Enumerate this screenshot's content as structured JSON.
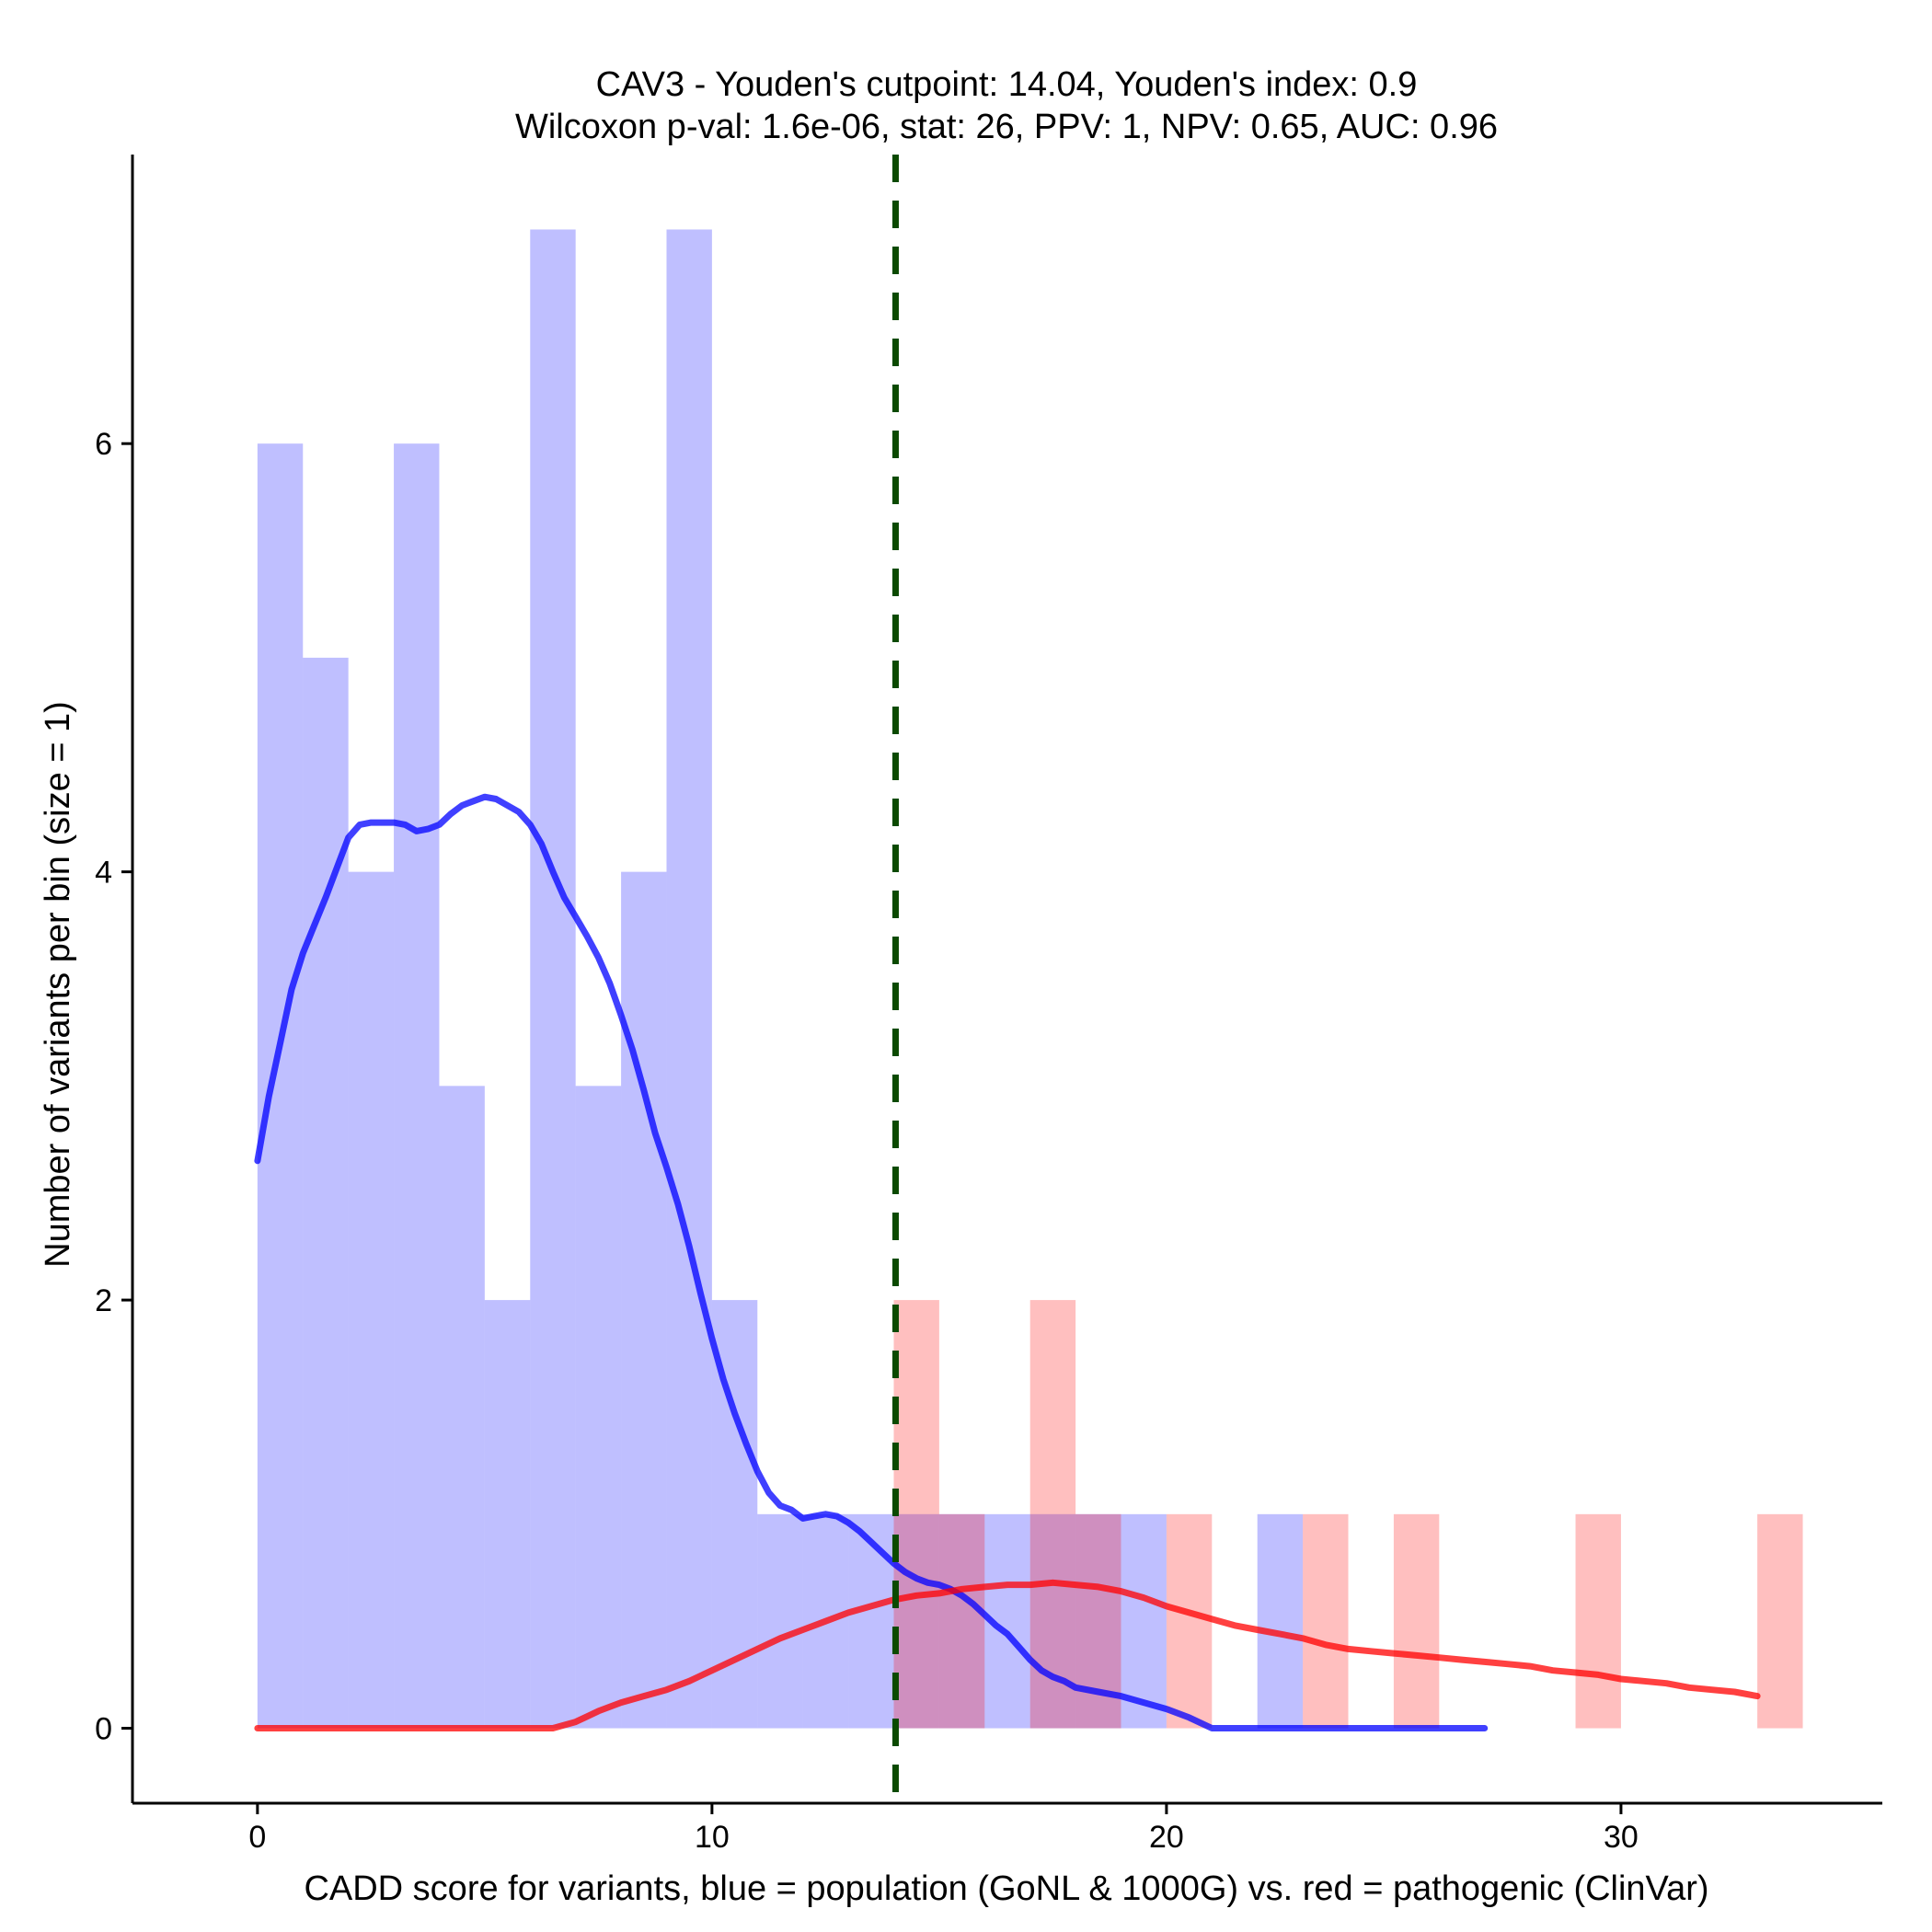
{
  "chart_data": {
    "type": "bar",
    "title_line1": "CAV3 - Youden's cutpoint: 14.04, Youden's index: 0.9",
    "title_line2": "Wilcoxon p-val: 1.6e-06, stat: 26, PPV: 1, NPV: 0.65, AUC: 0.96",
    "xlabel": "CADD score for variants, blue = population (GoNL & 1000G) vs. red = pathogenic (ClinVar)",
    "ylabel": "Number of variants per bin (size = 1)",
    "xlim": [
      -2.75,
      35.75
    ],
    "ylim": [
      -0.35,
      7.35
    ],
    "xticks": [
      0,
      10,
      20,
      30
    ],
    "yticks": [
      0,
      2,
      4,
      6
    ],
    "bin_width": 1,
    "cutpoint": 14.04,
    "series": [
      {
        "name": "population (GoNL & 1000G)",
        "color": "#0000ff",
        "bar_opacity": 0.25,
        "bins": [
          {
            "start": 0,
            "count": 6
          },
          {
            "start": 1,
            "count": 5
          },
          {
            "start": 2,
            "count": 4
          },
          {
            "start": 3,
            "count": 6
          },
          {
            "start": 4,
            "count": 3
          },
          {
            "start": 5,
            "count": 2
          },
          {
            "start": 6,
            "count": 7
          },
          {
            "start": 7,
            "count": 3
          },
          {
            "start": 8,
            "count": 4
          },
          {
            "start": 9,
            "count": 7
          },
          {
            "start": 10,
            "count": 2
          },
          {
            "start": 11,
            "count": 1
          },
          {
            "start": 12,
            "count": 1
          },
          {
            "start": 13,
            "count": 1
          },
          {
            "start": 14,
            "count": 1
          },
          {
            "start": 15,
            "count": 1
          },
          {
            "start": 16,
            "count": 1
          },
          {
            "start": 17,
            "count": 1
          },
          {
            "start": 18,
            "count": 1
          },
          {
            "start": 19,
            "count": 1
          },
          {
            "start": 22,
            "count": 1
          }
        ],
        "density": [
          [
            0,
            2.65
          ],
          [
            0.25,
            2.95
          ],
          [
            0.5,
            3.2
          ],
          [
            0.75,
            3.45
          ],
          [
            1,
            3.62
          ],
          [
            1.25,
            3.75
          ],
          [
            1.5,
            3.88
          ],
          [
            1.75,
            4.02
          ],
          [
            2,
            4.16
          ],
          [
            2.25,
            4.22
          ],
          [
            2.5,
            4.23
          ],
          [
            2.75,
            4.23
          ],
          [
            3,
            4.23
          ],
          [
            3.25,
            4.22
          ],
          [
            3.5,
            4.19
          ],
          [
            3.75,
            4.2
          ],
          [
            4,
            4.22
          ],
          [
            4.25,
            4.27
          ],
          [
            4.5,
            4.31
          ],
          [
            4.75,
            4.33
          ],
          [
            5,
            4.35
          ],
          [
            5.25,
            4.34
          ],
          [
            5.5,
            4.31
          ],
          [
            5.75,
            4.28
          ],
          [
            6,
            4.22
          ],
          [
            6.25,
            4.13
          ],
          [
            6.5,
            4.0
          ],
          [
            6.75,
            3.88
          ],
          [
            7,
            3.79
          ],
          [
            7.25,
            3.7
          ],
          [
            7.5,
            3.6
          ],
          [
            7.75,
            3.48
          ],
          [
            8,
            3.33
          ],
          [
            8.25,
            3.17
          ],
          [
            8.5,
            2.98
          ],
          [
            8.75,
            2.78
          ],
          [
            9,
            2.62
          ],
          [
            9.25,
            2.45
          ],
          [
            9.5,
            2.25
          ],
          [
            9.75,
            2.03
          ],
          [
            10,
            1.82
          ],
          [
            10.25,
            1.63
          ],
          [
            10.5,
            1.47
          ],
          [
            10.75,
            1.33
          ],
          [
            11,
            1.2
          ],
          [
            11.25,
            1.1
          ],
          [
            11.5,
            1.04
          ],
          [
            11.75,
            1.02
          ],
          [
            12,
            0.98
          ],
          [
            12.25,
            0.99
          ],
          [
            12.5,
            1.0
          ],
          [
            12.75,
            0.99
          ],
          [
            13,
            0.96
          ],
          [
            13.25,
            0.92
          ],
          [
            13.5,
            0.87
          ],
          [
            13.75,
            0.82
          ],
          [
            14,
            0.77
          ],
          [
            14.25,
            0.73
          ],
          [
            14.5,
            0.7
          ],
          [
            14.75,
            0.68
          ],
          [
            15,
            0.67
          ],
          [
            15.25,
            0.65
          ],
          [
            15.5,
            0.62
          ],
          [
            15.75,
            0.58
          ],
          [
            16,
            0.53
          ],
          [
            16.25,
            0.48
          ],
          [
            16.5,
            0.44
          ],
          [
            16.75,
            0.38
          ],
          [
            17,
            0.32
          ],
          [
            17.25,
            0.27
          ],
          [
            17.5,
            0.24
          ],
          [
            17.75,
            0.22
          ],
          [
            18,
            0.19
          ],
          [
            18.5,
            0.17
          ],
          [
            19,
            0.15
          ],
          [
            19.5,
            0.12
          ],
          [
            20,
            0.09
          ],
          [
            20.5,
            0.05
          ],
          [
            21,
            0.0
          ],
          [
            27,
            0.0
          ]
        ]
      },
      {
        "name": "pathogenic (ClinVar)",
        "color": "#ff0000",
        "bar_opacity": 0.25,
        "bins": [
          {
            "start": 14,
            "count": 2
          },
          {
            "start": 15,
            "count": 1
          },
          {
            "start": 17,
            "count": 2
          },
          {
            "start": 18,
            "count": 1
          },
          {
            "start": 20,
            "count": 1
          },
          {
            "start": 23,
            "count": 1
          },
          {
            "start": 25,
            "count": 1
          },
          {
            "start": 29,
            "count": 1
          },
          {
            "start": 33,
            "count": 1
          }
        ],
        "density": [
          [
            0,
            0.0
          ],
          [
            1,
            0.0
          ],
          [
            2,
            0.0
          ],
          [
            3,
            0.0
          ],
          [
            4,
            0.0
          ],
          [
            5,
            0.0
          ],
          [
            6,
            0.0
          ],
          [
            6.5,
            0.0
          ],
          [
            7,
            0.03
          ],
          [
            7.5,
            0.08
          ],
          [
            8,
            0.12
          ],
          [
            8.5,
            0.15
          ],
          [
            9,
            0.18
          ],
          [
            9.5,
            0.22
          ],
          [
            10,
            0.27
          ],
          [
            10.5,
            0.32
          ],
          [
            11,
            0.37
          ],
          [
            11.5,
            0.42
          ],
          [
            12,
            0.46
          ],
          [
            12.5,
            0.5
          ],
          [
            13,
            0.54
          ],
          [
            13.5,
            0.57
          ],
          [
            14,
            0.6
          ],
          [
            14.5,
            0.62
          ],
          [
            15,
            0.63
          ],
          [
            15.5,
            0.65
          ],
          [
            16,
            0.66
          ],
          [
            16.5,
            0.67
          ],
          [
            17,
            0.67
          ],
          [
            17.5,
            0.68
          ],
          [
            18,
            0.67
          ],
          [
            18.5,
            0.66
          ],
          [
            19,
            0.64
          ],
          [
            19.5,
            0.61
          ],
          [
            20,
            0.57
          ],
          [
            20.5,
            0.54
          ],
          [
            21,
            0.51
          ],
          [
            21.5,
            0.48
          ],
          [
            22,
            0.46
          ],
          [
            22.5,
            0.44
          ],
          [
            23,
            0.42
          ],
          [
            23.5,
            0.39
          ],
          [
            24,
            0.37
          ],
          [
            24.5,
            0.36
          ],
          [
            25,
            0.35
          ],
          [
            25.5,
            0.34
          ],
          [
            26,
            0.33
          ],
          [
            26.5,
            0.32
          ],
          [
            27,
            0.31
          ],
          [
            27.5,
            0.3
          ],
          [
            28,
            0.29
          ],
          [
            28.5,
            0.27
          ],
          [
            29,
            0.26
          ],
          [
            29.5,
            0.25
          ],
          [
            30,
            0.23
          ],
          [
            30.5,
            0.22
          ],
          [
            31,
            0.21
          ],
          [
            31.5,
            0.19
          ],
          [
            32,
            0.18
          ],
          [
            32.5,
            0.17
          ],
          [
            33,
            0.15
          ]
        ]
      }
    ]
  }
}
